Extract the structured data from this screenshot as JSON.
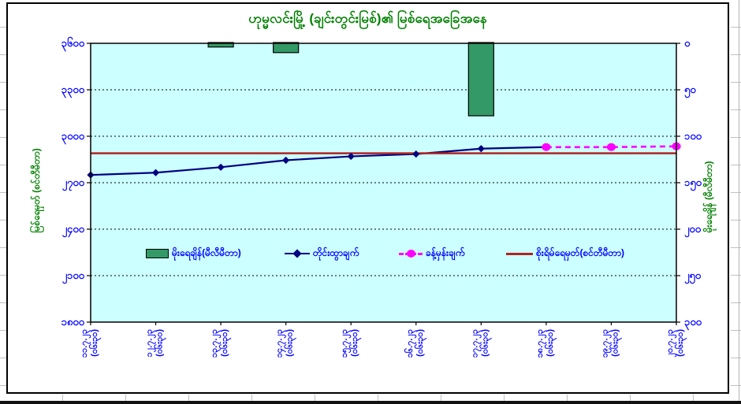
{
  "chart_data": {
    "type": "combo",
    "title": "ဟုမ္မလင်းမြို့ (ချင်းတွင်းမြစ်)၏ မြစ်ရေအခြေအနေ",
    "categories": [
      {
        "date": "၁၁.၇.၂၃",
        "time": "(၀၆း၃၀)"
      },
      {
        "date": "၁၂.၇.၂၃",
        "time": "(၀၆း၃၀)"
      },
      {
        "date": "၁၃.၇.၂၃",
        "time": "(၀၆း၃၀)"
      },
      {
        "date": "၁၄.၇.၂၃",
        "time": "(၀၆း၃၀)"
      },
      {
        "date": "၁၅.၇.၂၃",
        "time": "(၀၆း၃၀)"
      },
      {
        "date": "၁၆.၇.၂၃",
        "time": "(၀၆း၃၀)"
      },
      {
        "date": "၁၇.၇.၂၃",
        "time": "(၀၆း၃၀)"
      },
      {
        "date": "၁၈.၇.၂၃",
        "time": "(၀၆း၃၀)"
      },
      {
        "date": "၁၉.၇.၂၃",
        "time": "(၀၆း၃၀)"
      },
      {
        "date": "၂၀.၇.၂၃",
        "time": "(၀၆း၃၀)"
      }
    ],
    "left_axis": {
      "title": "မြစ်ရေမှတ် (စင်တီမီတာ)",
      "min": 1800,
      "max": 3600,
      "step": 300,
      "tick_labels": [
        "၃၆၀၀",
        "၃၃၀၀",
        "၃၀၀၀",
        "၂၇၀၀",
        "၂၄၀၀",
        "၂၁၀၀",
        "၁၈၀၀"
      ],
      "tick_values": [
        3600,
        3300,
        3000,
        2700,
        2400,
        2100,
        1800
      ]
    },
    "right_axis": {
      "title": "မိုးရေချိန် (မီလီမီတာ)",
      "min": 0,
      "max": 300,
      "step": 50,
      "reversed": true,
      "tick_labels": [
        "၀",
        "၅၀",
        "၁၀၀",
        "၁၅၀",
        "၂၀၀",
        "၂၅၀",
        "၃၀၀"
      ],
      "tick_values": [
        0,
        50,
        100,
        150,
        200,
        250,
        300
      ]
    },
    "series": [
      {
        "name": "မိုးရေချိန်(မီလီမီတာ)",
        "type": "bar",
        "axis": "right",
        "color": "#339966",
        "values": [
          0,
          0,
          4,
          10,
          0,
          0,
          78,
          0,
          0,
          0
        ]
      },
      {
        "name": "တိုင်းထွာချက်",
        "type": "line",
        "axis": "left",
        "color": "#000080",
        "marker": "diamond",
        "values": [
          2750,
          2765,
          2800,
          2845,
          2870,
          2885,
          2920,
          2930,
          null,
          null
        ]
      },
      {
        "name": "ခန့်မှန်းချက်",
        "type": "line",
        "style": "dashed",
        "axis": "left",
        "color": "#FF00FF",
        "marker": "circle",
        "values": [
          null,
          null,
          null,
          null,
          null,
          null,
          null,
          2930,
          2930,
          2935
        ]
      },
      {
        "name": "စိုးရိမ်ရေမှတ်(စင်တီမီတာ)",
        "type": "constant-line",
        "axis": "left",
        "color": "#B22222",
        "value": 2890
      }
    ],
    "legend_position": "inside-middle",
    "grid": true,
    "plot_background": "#CCFFFF",
    "text_colors": {
      "title": "#008000",
      "axis_titles": "#008000",
      "tick_labels": "#0000FF",
      "legend": "#0000FF"
    }
  }
}
